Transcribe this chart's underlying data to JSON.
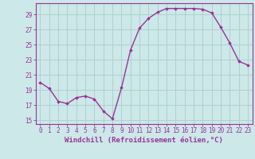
{
  "x": [
    0,
    1,
    2,
    3,
    4,
    5,
    6,
    7,
    8,
    9,
    10,
    11,
    12,
    13,
    14,
    15,
    16,
    17,
    18,
    19,
    20,
    21,
    22,
    23
  ],
  "y": [
    20.0,
    19.2,
    17.5,
    17.2,
    18.0,
    18.2,
    17.8,
    16.2,
    15.2,
    19.3,
    24.3,
    27.2,
    28.5,
    29.3,
    29.8,
    29.8,
    29.8,
    29.8,
    29.7,
    29.2,
    27.3,
    25.2,
    22.8,
    22.3
  ],
  "line_color": "#993399",
  "marker": "D",
  "marker_size": 1.8,
  "background_color": "#cce8e8",
  "grid_color": "#b0d0d0",
  "xlabel": "Windchill (Refroidissement éolien,°C)",
  "xlabel_fontsize": 6.5,
  "ylim": [
    14.5,
    30.5
  ],
  "yticks": [
    15,
    17,
    19,
    21,
    23,
    25,
    27,
    29
  ],
  "xtick_labels": [
    "0",
    "1",
    "2",
    "3",
    "4",
    "5",
    "6",
    "7",
    "8",
    "9",
    "10",
    "11",
    "12",
    "13",
    "14",
    "15",
    "16",
    "17",
    "18",
    "19",
    "20",
    "21",
    "22",
    "23"
  ],
  "tick_fontsize": 5.5,
  "tick_color": "#993399",
  "label_color": "#993399",
  "spine_color": "#993399",
  "line_width": 1.0
}
